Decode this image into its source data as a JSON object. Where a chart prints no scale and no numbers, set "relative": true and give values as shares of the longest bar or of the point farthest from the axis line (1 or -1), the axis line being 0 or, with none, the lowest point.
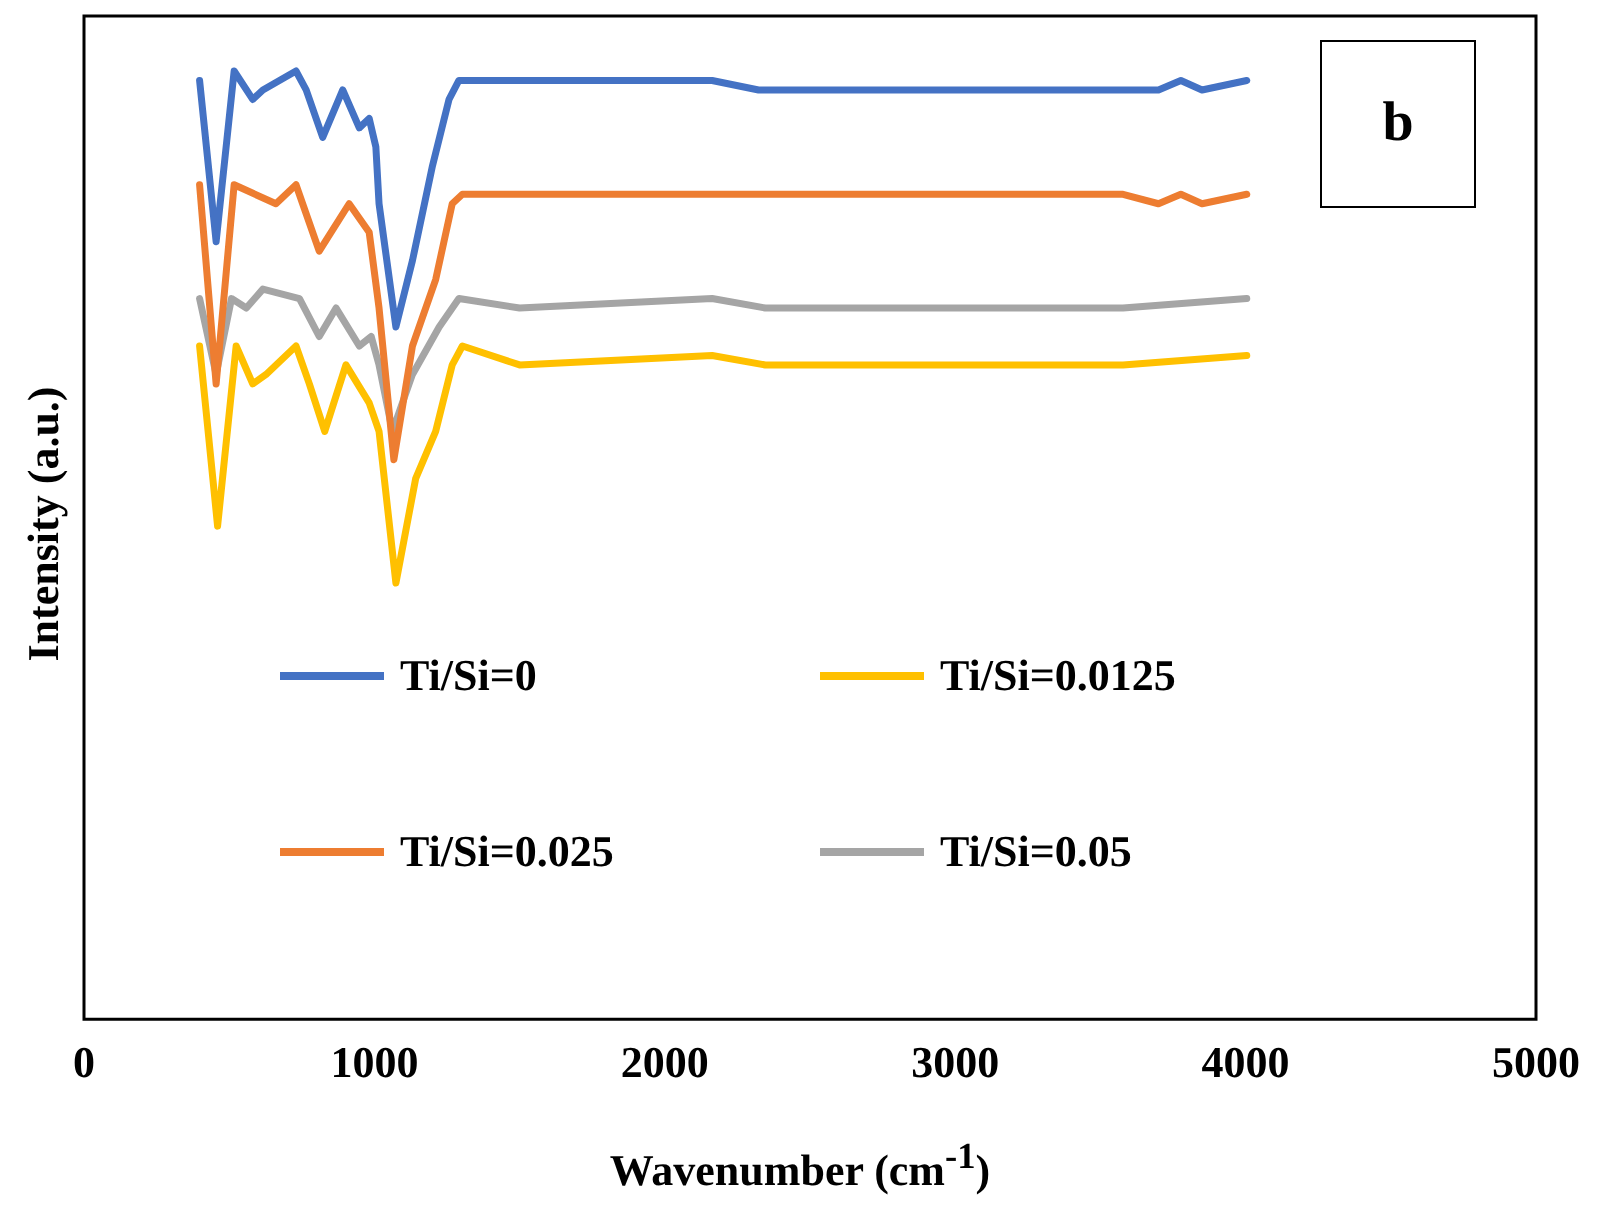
{
  "chart_data": {
    "type": "line",
    "relative": true,
    "xlabel": "Wavenumber (cm$^{-1}$)",
    "ylabel": "Intensity (a.u.)",
    "annotations": [
      "b"
    ],
    "xlim": [
      0,
      5000
    ],
    "xticks": [
      0,
      1000,
      2000,
      3000,
      4000,
      5000
    ],
    "grid": false,
    "legend": "bottom",
    "marker": "none",
    "line_style": "solid",
    "series": [
      {
        "name": "Ti/Si=0",
        "color": "#4472c4",
        "x": [
          398,
          455,
          517,
          581,
          616,
          730,
          765,
          822,
          891,
          948,
          982,
          1005,
          1016,
          1074,
          1131,
          1200,
          1257,
          1291,
          1500,
          2163,
          2323,
          3578,
          3700,
          3777,
          3850,
          4004
        ],
        "values": [
          0.99,
          0.82,
          1,
          0.97,
          0.98,
          1,
          0.98,
          0.93,
          0.98,
          0.94,
          0.95,
          0.92,
          0.86,
          0.73,
          0.8,
          0.9,
          0.97,
          0.99,
          0.99,
          0.99,
          0.98,
          0.98,
          0.98,
          0.99,
          0.98,
          0.99
        ]
      },
      {
        "name": "Ti/Si=0.0125",
        "color": "#ffc000",
        "x": [
          398,
          460,
          524,
          581,
          627,
          730,
          776,
          829,
          902,
          982,
          1016,
          1074,
          1142,
          1211,
          1268,
          1303,
          1500,
          2163,
          2346,
          2400,
          3578,
          4004
        ],
        "values": [
          0.71,
          0.52,
          0.71,
          0.67,
          0.68,
          0.71,
          0.67,
          0.62,
          0.69,
          0.65,
          0.62,
          0.46,
          0.57,
          0.62,
          0.69,
          0.71,
          0.69,
          0.7,
          0.69,
          0.69,
          0.69,
          0.7
        ]
      },
      {
        "name": "Ti/Si=0.025",
        "color": "#ed7d31",
        "x": [
          398,
          455,
          517,
          661,
          730,
          810,
          913,
          982,
          1016,
          1067,
          1131,
          1211,
          1268,
          1303,
          1500,
          2163,
          2323,
          3578,
          3700,
          3777,
          3850,
          4004
        ],
        "values": [
          0.88,
          0.67,
          0.88,
          0.86,
          0.88,
          0.81,
          0.86,
          0.83,
          0.75,
          0.59,
          0.71,
          0.78,
          0.86,
          0.87,
          0.87,
          0.87,
          0.87,
          0.87,
          0.86,
          0.87,
          0.86,
          0.87
        ]
      },
      {
        "name": "Ti/Si=0.05",
        "color": "#a5a5a5",
        "x": [
          398,
          455,
          508,
          559,
          616,
          742,
          810,
          868,
          948,
          989,
          1016,
          1062,
          1131,
          1223,
          1291,
          1500,
          2163,
          2346,
          2400,
          3578,
          4004
        ],
        "values": [
          0.76,
          0.68,
          0.76,
          0.75,
          0.77,
          0.76,
          0.72,
          0.75,
          0.71,
          0.72,
          0.69,
          0.62,
          0.68,
          0.73,
          0.76,
          0.75,
          0.76,
          0.75,
          0.75,
          0.75,
          0.76
        ]
      }
    ]
  }
}
